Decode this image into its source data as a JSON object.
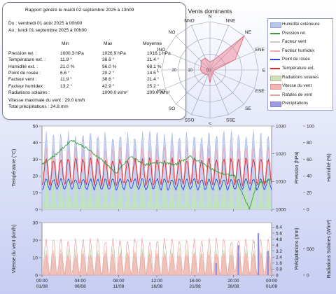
{
  "report": {
    "title": "Rapport généré le mardi 02 septembre 2025 à 13h09",
    "from": "Du : vendredi 01 août 2025 à 00h00",
    "to": "Au : lundi 01 septembre 2025 à 00h00",
    "headers": [
      "Min",
      "Max",
      "Moyenne"
    ],
    "rows": [
      {
        "label": "Pression rel. :",
        "min": "1000.3 hPa",
        "max": "1026.9 hPa",
        "avg": "1016.1 hPa"
      },
      {
        "label": "Température ext. :",
        "min": "11.9 °",
        "max": "38.6 °",
        "avg": "21.4 °"
      },
      {
        "label": "Humidité ext. :",
        "min": "21.0 %",
        "max": "96.0 %",
        "avg": "68.1 %"
      },
      {
        "label": "Point de rosée :",
        "min": "6.6 °",
        "max": "20.2 °",
        "avg": "14.5 °"
      },
      {
        "label": "Facteur vent :",
        "min": "11.9 °",
        "max": "38.6 °",
        "avg": "21.4 °"
      },
      {
        "label": "Facteur humidex :",
        "min": "13.2 °",
        "max": "42.9 °",
        "avg": "25.2 °"
      },
      {
        "label": "Radiations solaires :",
        "min": "",
        "max": "1000.0 w/m²",
        "avg": "209.0 w/m²"
      }
    ],
    "wind_max": "Vitesse maximale du vent : 29.0 km/h",
    "total_precip": "Total précipitations : 24.8 mm"
  },
  "legend": [
    {
      "label": "Humidité extérieure",
      "color": "#b8c6ee",
      "kind": "fill"
    },
    {
      "label": "Pression rel.",
      "color": "#3a9c3a",
      "kind": "line"
    },
    {
      "label": "Facteur vent",
      "color": "#c8c8c8",
      "kind": "line"
    },
    {
      "label": "Facteur humidex",
      "color": "#f0a6b4",
      "kind": "line"
    },
    {
      "label": "Point de rosée",
      "color": "#2944d6",
      "kind": "line"
    },
    {
      "label": "Température ext.",
      "color": "#e02828",
      "kind": "line"
    },
    {
      "label": "Radiations solaires",
      "color": "#cfe0b8",
      "kind": "fill"
    },
    {
      "label": "Vitesse du vent",
      "color": "#f7b3b3",
      "kind": "fill"
    },
    {
      "label": "Rafales de vent",
      "color": "#e9a0a0",
      "kind": "line"
    },
    {
      "label": "Précipitations",
      "color": "#9b9be8",
      "kind": "fill"
    }
  ],
  "chart_data": [
    {
      "type": "radar",
      "title": "Vents dominants",
      "directions": [
        "N",
        "NNE",
        "NE",
        "ENE",
        "E",
        "ESE",
        "SE",
        "SSE",
        "S",
        "SSO",
        "SO",
        "OSO",
        "O",
        "ONO",
        "NO",
        "NNO"
      ],
      "rings": [
        0,
        10,
        20,
        30
      ],
      "ring_labels": [
        "0",
        "10",
        "20"
      ],
      "values": [
        5,
        7,
        30,
        17,
        3,
        2,
        3,
        3,
        8,
        3,
        4,
        5,
        6,
        6,
        8,
        8
      ]
    },
    {
      "type": "line",
      "panel": "upper",
      "x_tick_labels": [
        "00:00\n01/08",
        "04:00\n06/08",
        "08:00\n11/08",
        "12:00\n16/08",
        "16:00\n21/08",
        "20:00\n26/08",
        "00:00\n01/09"
      ],
      "x_range_days": [
        0,
        31
      ],
      "y_left": {
        "label": "Température (°C)",
        "range": [
          0,
          50
        ],
        "ticks": [
          0,
          10,
          20,
          30,
          40,
          50
        ]
      },
      "y_right1": {
        "label": "Pression (hPa)",
        "range": [
          1000,
          1030
        ],
        "ticks": [
          1000,
          1010,
          1020,
          1030
        ]
      },
      "y_right2": {
        "label": "Humidité (%)",
        "range": [
          0,
          100
        ],
        "ticks": [
          0,
          20,
          40,
          60,
          80,
          100
        ]
      },
      "series": [
        {
          "name": "Humidité extérieure",
          "axis": "y_right2",
          "cycle_daily": true,
          "low": 30,
          "high": 90,
          "color": "#b8c6ee"
        },
        {
          "name": "Pression rel.",
          "axis": "y_right1",
          "x": [
            0,
            2,
            4,
            6,
            8,
            10,
            12,
            14,
            16,
            18,
            20,
            22,
            24,
            26,
            27,
            28,
            29,
            31
          ],
          "y": [
            1016,
            1020,
            1025,
            1022,
            1018,
            1013,
            1019,
            1016,
            1017,
            1016,
            1019,
            1016,
            1013,
            1012,
            1006,
            1000,
            1009,
            1011
          ],
          "color": "#3a9c3a"
        },
        {
          "name": "Température ext.",
          "axis": "y_left",
          "cycle_daily": true,
          "low": 15,
          "high": 30,
          "color": "#e02828"
        },
        {
          "name": "Facteur humidex",
          "axis": "y_left",
          "cycle_daily": true,
          "low": 16,
          "high": 36,
          "color": "#f0a6b4"
        },
        {
          "name": "Point de rosée",
          "axis": "y_left",
          "cycle_daily": true,
          "low": 12,
          "high": 18,
          "color": "#2944d6"
        },
        {
          "name": "Radiations solaires",
          "axis": "y_left",
          "cycle_daily": true,
          "low": 0,
          "high": 20,
          "color": "#cfe0b8"
        }
      ]
    },
    {
      "type": "area",
      "panel": "lower",
      "x_tick_labels": [
        "00:00\n01/08",
        "04:00\n06/08",
        "08:00\n11/08",
        "12:00\n16/08",
        "16:00\n21/08",
        "20:00\n26/08",
        "00:00\n01/09"
      ],
      "x_range_days": [
        0,
        31
      ],
      "y_left": {
        "label": "Vitesse du vent (km/h)",
        "range": [
          0,
          30
        ],
        "ticks": [
          0,
          10,
          20,
          30
        ]
      },
      "y_right1": {
        "label": "Précipitations (mm)",
        "range": [
          0,
          7
        ],
        "ticks": [
          0,
          0.8,
          1.6,
          2.4,
          3.2,
          4.0,
          4.8,
          5.6,
          6.4
        ]
      },
      "y_right2": {
        "label": "Radiations Solaires (W/m²)",
        "range": [
          0,
          1000
        ],
        "ticks": [
          0,
          500
        ]
      },
      "series": [
        {
          "name": "Vitesse du vent",
          "axis": "y_left",
          "cycle_daily": true,
          "low": 0,
          "high": 12,
          "color": "#f7b3b3"
        },
        {
          "name": "Rafales de vent",
          "axis": "y_left",
          "cycle_daily": true,
          "low": 0,
          "high": 20,
          "color": "#e9a0a0"
        },
        {
          "name": "Radiations solaires",
          "axis": "y_right2",
          "cycle_daily": true,
          "low": 0,
          "high": 500,
          "color": "#cfe0b8"
        },
        {
          "name": "Précipitations",
          "axis": "y_right1",
          "x": [
            23.5,
            26.5,
            29.2,
            30.5
          ],
          "y": [
            1.6,
            4.0,
            5.6,
            3.2
          ],
          "color": "#9b9be8"
        }
      ]
    }
  ]
}
